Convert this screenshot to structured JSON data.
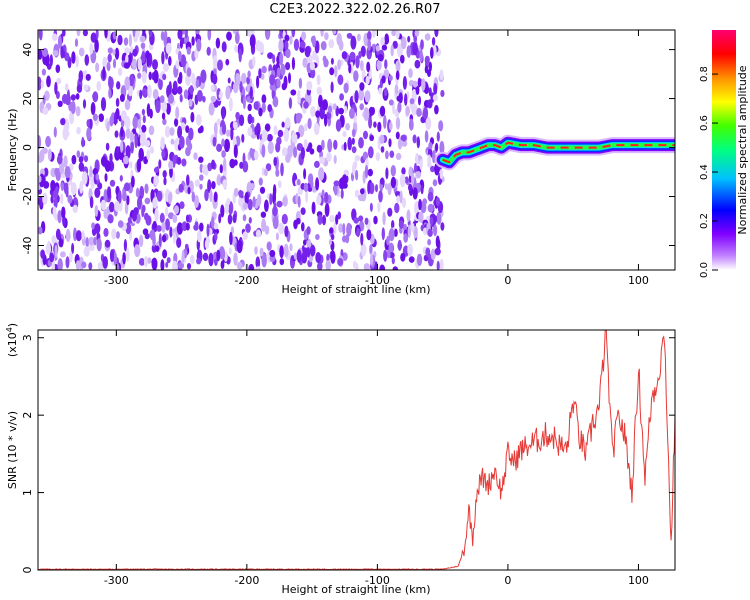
{
  "title": "C2E3.2022.322.02.26.R07",
  "colors": {
    "noise": "#7b2cf0",
    "line": "#e53935",
    "colorbar": [
      "#ffffff",
      "#b000ff",
      "#0000ff",
      "#00ffff",
      "#00ff00",
      "#ffff00",
      "#ff8800",
      "#ff0000",
      "#ff0080"
    ]
  },
  "chart_data": [
    {
      "type": "heatmap",
      "xlabel": "Height of straight line (km)",
      "ylabel": "Frequency (Hz)",
      "xlim": [
        -360,
        128
      ],
      "ylim": [
        -50,
        48
      ],
      "xticks": [
        -300,
        -200,
        -100,
        0,
        100
      ],
      "yticks": [
        -40,
        -20,
        0,
        20,
        40
      ],
      "grid": false,
      "noise_region_x": [
        -360,
        -50
      ],
      "signal_trace": {
        "x": [
          -50,
          -45,
          -40,
          -35,
          -30,
          -25,
          -20,
          -15,
          -10,
          -5,
          0,
          10,
          20,
          30,
          40,
          50,
          60,
          70,
          80,
          90,
          100,
          110,
          120,
          128
        ],
        "y": [
          -5,
          -6,
          -3,
          -2,
          -2,
          -1,
          0,
          1,
          1,
          0,
          2,
          1,
          1,
          0,
          0,
          0,
          0,
          0,
          1,
          1,
          1,
          1,
          1,
          1
        ]
      },
      "colorbar": {
        "label": "Normalized spectral amplitude",
        "ticks": [
          "0.0",
          "0.2",
          "0.4",
          "0.6",
          "0.8"
        ],
        "range": [
          0,
          0.98
        ]
      }
    },
    {
      "type": "line",
      "xlabel": "Height of straight line (km)",
      "ylabel": "SNR (10 * v/v)",
      "yscale_label": "(x10",
      "yscale_exp": "4",
      "xlim": [
        -360,
        128
      ],
      "ylim": [
        0,
        3.1
      ],
      "xticks": [
        -300,
        -200,
        -100,
        0,
        100
      ],
      "yticks": [
        0,
        1,
        2,
        3
      ],
      "grid": false,
      "series": [
        {
          "x": [
            -360,
            -300,
            -200,
            -100,
            -50,
            -38,
            -33,
            -30,
            -27,
            -24,
            -20,
            -15,
            -10,
            -5,
            0,
            5,
            10,
            15,
            20,
            25,
            30,
            35,
            40,
            45,
            50,
            55,
            60,
            65,
            70,
            75,
            80,
            85,
            90,
            95,
            100,
            105,
            110,
            115,
            120,
            125,
            128
          ],
          "y": [
            0.01,
            0.01,
            0.01,
            0.01,
            0.01,
            0.05,
            0.3,
            0.8,
            0.4,
            1.0,
            1.2,
            1.1,
            1.3,
            1.0,
            1.5,
            1.4,
            1.55,
            1.6,
            1.65,
            1.7,
            1.75,
            1.72,
            1.6,
            1.55,
            2.2,
            1.7,
            1.5,
            1.9,
            2.1,
            3.1,
            1.5,
            2.0,
            1.7,
            1.0,
            2.6,
            1.2,
            2.2,
            2.5,
            3.05,
            0.3,
            2.0
          ]
        }
      ]
    }
  ]
}
